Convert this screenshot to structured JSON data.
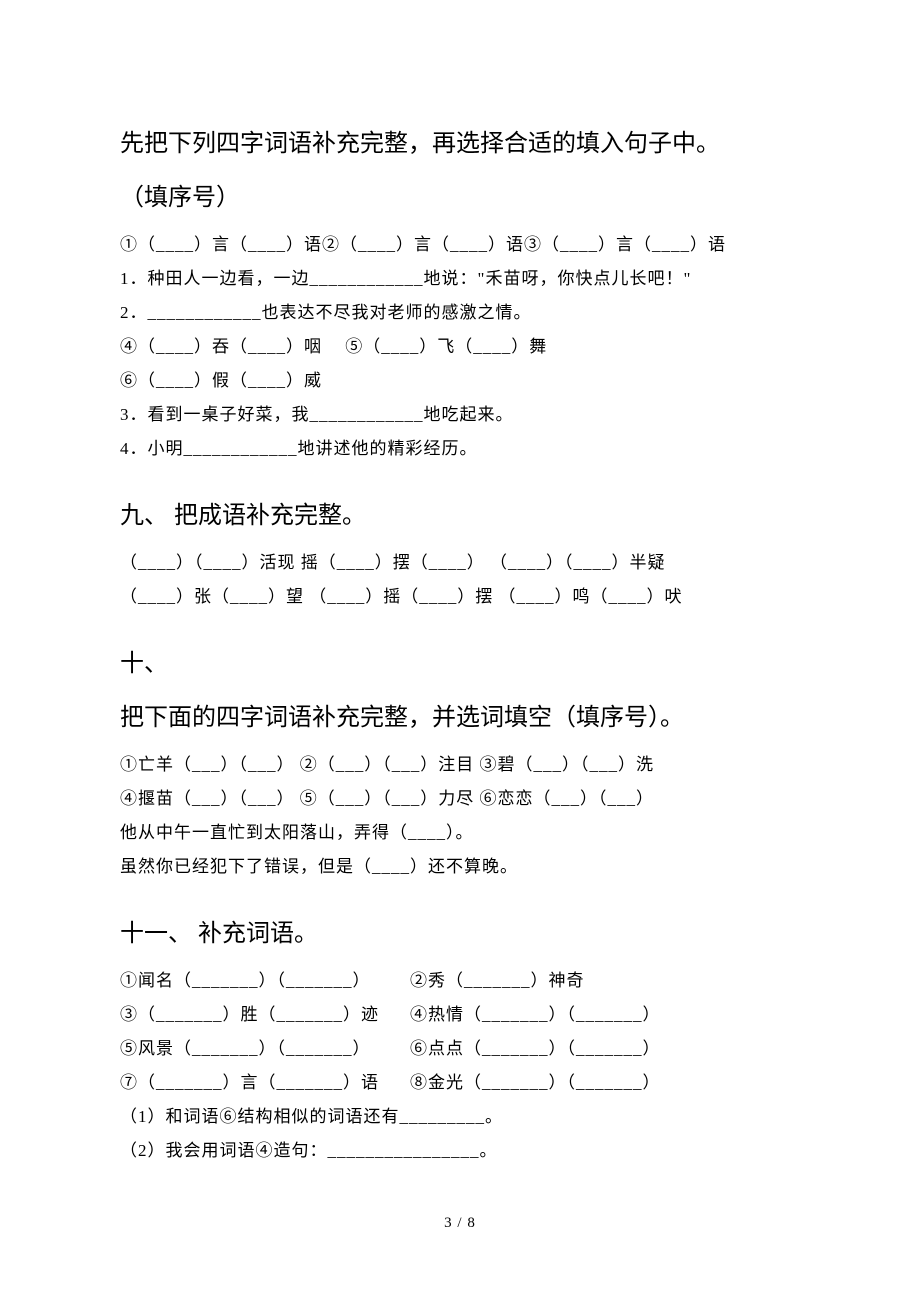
{
  "intro": {
    "para1": "先把下列四字词语补充完整，再选择合适的填入句子中。",
    "para2": "（填序号）",
    "line1": "①（____）言（____）语②（____）言（____）语③（____）言（____）语",
    "line2": "1．种田人一边看，一边____________地说：\"禾苗呀，你快点儿长吧！\"",
    "line3": "2．____________也表达不尽我对老师的感激之情。",
    "line4": "④（____）吞（____）咽　 ⑤（____）飞（____）舞",
    "line5": "⑥（____）假（____）威",
    "line6": "3．看到一桌子好菜，我____________地吃起来。",
    "line7": "4．小明____________地讲述他的精彩经历。"
  },
  "s9": {
    "title": "九、 把成语补充完整。",
    "line1": "（____）（____）活现  摇（____）摆（____）  （____）（____）半疑",
    "line2": "（____）张（____）望  （____）摇（____）摆  （____）鸣（____）吠"
  },
  "s10": {
    "title1": "十、",
    "title2": "把下面的四字词语补充完整，并选词填空（填序号）。",
    "line1": "①亡羊（___）（___）  ②（___）（___）注目   ③碧（___）（___）洗",
    "line2": "④揠苗（___）（___）  ⑤（___）（___）力尽   ⑥恋恋（___）（___）",
    "line3": "他从中午一直忙到太阳落山，弄得（____）。",
    "line4": "虽然你已经犯下了错误，但是（____）还不算晚。"
  },
  "s11": {
    "title": "十一、 补充词语。",
    "r1a": "①闻名（_______）（_______）",
    "r1b": "②秀（_______）神奇",
    "r2a": "③（_______）胜（_______）迹",
    "r2b": "④热情（_______）（_______）",
    "r3a": "⑤风景（_______）（_______）",
    "r3b": "⑥点点（_______）（_______）",
    "r4a": "⑦（_______）言（_______）语",
    "r4b": "⑧金光（_______）（_______）",
    "line5": "（1）和词语⑥结构相似的词语还有_________。",
    "line6": "（2）我会用词语④造句：________________。"
  },
  "footer": "3 / 8"
}
